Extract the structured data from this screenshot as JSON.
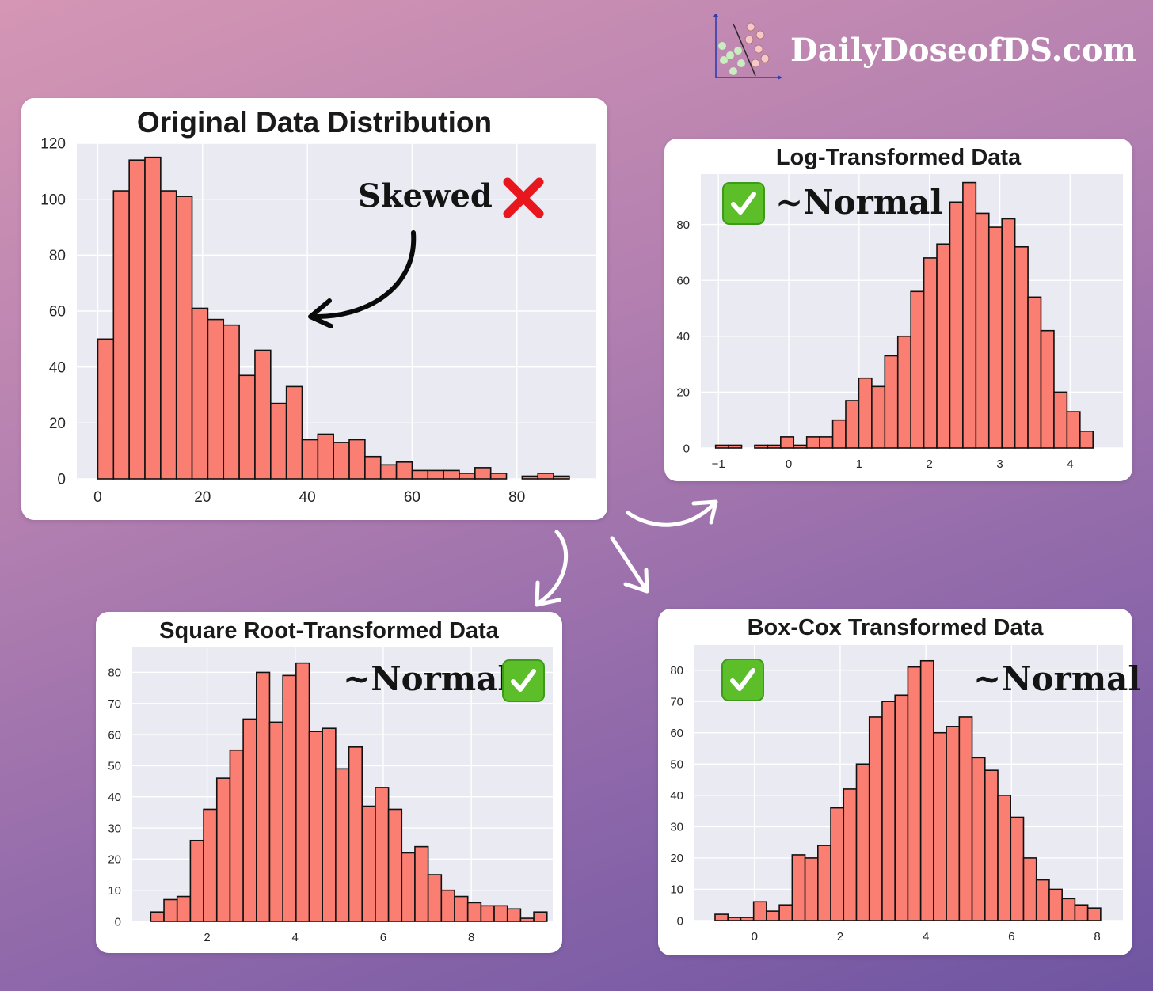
{
  "brand": {
    "text": "DailyDoseofDS.com",
    "logo": "scatter-plot-logo"
  },
  "colors": {
    "bar_fill": "#fa7f72",
    "bar_edge": "#111111",
    "plot_bg": "#eaeaf2",
    "grid": "#ffffff",
    "check_green": "#5cbf2a",
    "cross_red": "#e8171d"
  },
  "annotations": {
    "skewed": "Skewed",
    "normal_log": "~Normal",
    "normal_sqrt": "~Normal",
    "normal_boxcox": "~Normal"
  },
  "icons": {
    "skewed_mark": "red-cross-mark-icon",
    "normal_mark": "green-check-mark-icon",
    "pointer": "curved-arrow-icon",
    "flow": "white-flow-arrow-icon"
  },
  "chart_data": [
    {
      "id": "original",
      "type": "bar",
      "title": "Original Data Distribution",
      "xlabel": "",
      "ylabel": "",
      "xlim": [
        -4,
        95
      ],
      "ylim": [
        0,
        120
      ],
      "xticks": [
        0,
        20,
        40,
        60,
        80
      ],
      "xtick_labels": [
        "0",
        "20",
        "40",
        "60",
        "80"
      ],
      "yticks": [
        0,
        20,
        40,
        60,
        80,
        100,
        120
      ],
      "ytick_labels": [
        "0",
        "20",
        "40",
        "60",
        "80",
        "100",
        "120"
      ],
      "bin_edges": [
        0,
        3,
        6,
        9,
        12,
        15,
        18,
        21,
        24,
        27,
        30,
        33,
        36,
        39,
        42,
        45,
        48,
        51,
        54,
        57,
        60,
        63,
        66,
        69,
        72,
        75,
        78,
        81,
        84,
        87,
        90
      ],
      "counts": [
        50,
        103,
        114,
        115,
        103,
        101,
        61,
        57,
        55,
        37,
        46,
        27,
        33,
        14,
        16,
        13,
        14,
        8,
        5,
        6,
        3,
        3,
        3,
        2,
        4,
        2,
        0,
        1,
        2,
        1
      ],
      "grid": true
    },
    {
      "id": "log",
      "type": "bar",
      "title": "Log-Transformed Data",
      "xlabel": "",
      "ylabel": "",
      "xlim": [
        -1.25,
        4.75
      ],
      "ylim": [
        0,
        98
      ],
      "xticks": [
        -1,
        0,
        1,
        2,
        3,
        4
      ],
      "xtick_labels": [
        "−1",
        "0",
        "1",
        "2",
        "3",
        "4"
      ],
      "yticks": [
        0,
        20,
        40,
        60,
        80
      ],
      "ytick_labels": [
        "0",
        "20",
        "40",
        "60",
        "80"
      ],
      "bin_edges": [
        -1.04,
        -0.855,
        -0.67,
        -0.485,
        -0.3,
        -0.115,
        0.07,
        0.255,
        0.44,
        0.625,
        0.81,
        0.995,
        1.18,
        1.365,
        1.55,
        1.735,
        1.92,
        2.105,
        2.29,
        2.475,
        2.66,
        2.845,
        3.03,
        3.215,
        3.4,
        3.585,
        3.77,
        3.955,
        4.14,
        4.325,
        4.51
      ],
      "counts": [
        1,
        1,
        0,
        1,
        1,
        4,
        1,
        4,
        4,
        10,
        17,
        25,
        22,
        33,
        40,
        56,
        68,
        73,
        88,
        95,
        84,
        79,
        82,
        72,
        54,
        42,
        20,
        13,
        6,
        0
      ],
      "grid": true
    },
    {
      "id": "sqrt",
      "type": "bar",
      "title": "Square Root-Transformed Data",
      "xlabel": "",
      "ylabel": "",
      "xlim": [
        0.3,
        9.85
      ],
      "ylim": [
        0,
        88
      ],
      "xticks": [
        2,
        4,
        6,
        8
      ],
      "xtick_labels": [
        "2",
        "4",
        "6",
        "8"
      ],
      "yticks": [
        0,
        10,
        20,
        30,
        40,
        50,
        60,
        70,
        80
      ],
      "ytick_labels": [
        "0",
        "10",
        "20",
        "30",
        "40",
        "50",
        "60",
        "70",
        "80"
      ],
      "bin_edges": [
        0.72,
        1.02,
        1.32,
        1.62,
        1.92,
        2.22,
        2.52,
        2.82,
        3.12,
        3.42,
        3.72,
        4.02,
        4.32,
        4.62,
        4.92,
        5.22,
        5.52,
        5.82,
        6.12,
        6.42,
        6.72,
        7.02,
        7.32,
        7.62,
        7.92,
        8.22,
        8.52,
        8.82,
        9.12,
        9.42,
        9.72
      ],
      "counts": [
        3,
        7,
        8,
        26,
        36,
        46,
        55,
        65,
        80,
        64,
        79,
        83,
        61,
        62,
        49,
        56,
        37,
        43,
        36,
        22,
        24,
        15,
        10,
        8,
        6,
        5,
        5,
        4,
        1,
        3
      ],
      "grid": true
    },
    {
      "id": "boxcox",
      "type": "bar",
      "title": "Box-Cox Transformed Data",
      "xlabel": "",
      "ylabel": "",
      "xlim": [
        -1.4,
        8.6
      ],
      "ylim": [
        0,
        88
      ],
      "xticks": [
        0,
        2,
        4,
        6,
        8
      ],
      "xtick_labels": [
        "0",
        "2",
        "4",
        "6",
        "8"
      ],
      "yticks": [
        0,
        10,
        20,
        30,
        40,
        50,
        60,
        70,
        80
      ],
      "ytick_labels": [
        "0",
        "10",
        "20",
        "30",
        "40",
        "50",
        "60",
        "70",
        "80"
      ],
      "bin_edges": [
        -0.92,
        -0.62,
        -0.32,
        -0.02,
        0.28,
        0.58,
        0.88,
        1.18,
        1.48,
        1.78,
        2.08,
        2.38,
        2.68,
        2.98,
        3.28,
        3.58,
        3.88,
        4.18,
        4.48,
        4.78,
        5.08,
        5.38,
        5.68,
        5.98,
        6.28,
        6.58,
        6.88,
        7.18,
        7.48,
        7.78,
        8.08
      ],
      "counts": [
        2,
        1,
        1,
        6,
        3,
        5,
        21,
        20,
        24,
        36,
        42,
        50,
        65,
        70,
        72,
        81,
        83,
        60,
        62,
        65,
        52,
        48,
        40,
        33,
        20,
        13,
        10,
        7,
        5,
        4
      ],
      "grid": true
    }
  ]
}
